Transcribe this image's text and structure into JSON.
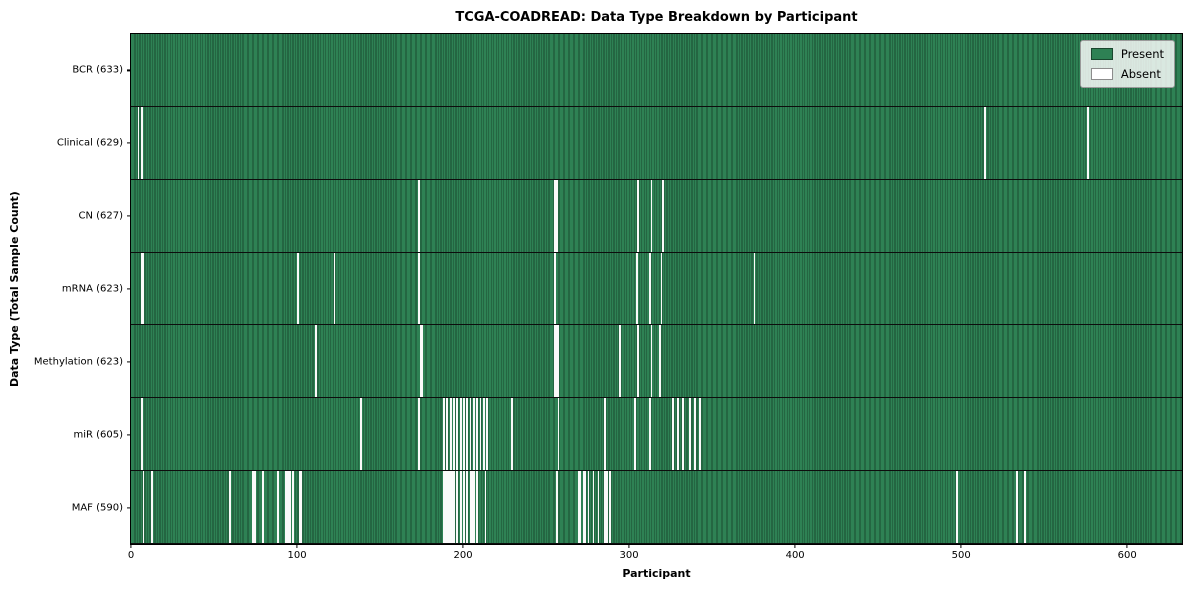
{
  "title": "TCGA-COADREAD: Data Type Breakdown by Participant",
  "legend": {
    "present_label": "Present",
    "absent_label": "Absent"
  },
  "colors": {
    "present": "#2e8154",
    "present_edge": "#1b4c30",
    "absent": "#fafafa",
    "axis": "#000000"
  },
  "chart_data": {
    "type": "heatmap",
    "title": "TCGA-COADREAD: Data Type Breakdown by Participant",
    "xlabel": "Participant",
    "ylabel": "Data Type (Total Sample Count)",
    "legend": [
      "Present",
      "Absent"
    ],
    "legend_position": "upper right",
    "x_ticks": [
      0,
      100,
      200,
      300,
      400,
      500,
      600
    ],
    "x_range": [
      0,
      633
    ],
    "total_participants": 633,
    "rows": [
      {
        "data_type": "BCR",
        "label": "BCR (633)",
        "present_count": 633,
        "absent_participants": []
      },
      {
        "data_type": "Clinical",
        "label": "Clinical (629)",
        "present_count": 629,
        "absent_participants": [
          4,
          6,
          514,
          576
        ]
      },
      {
        "data_type": "CN",
        "label": "CN (627)",
        "present_count": 627,
        "absent_participants": [
          173,
          255,
          256,
          305,
          313,
          320
        ]
      },
      {
        "data_type": "mRNA",
        "label": "mRNA (623)",
        "present_count": 623,
        "absent_participants": [
          6,
          7,
          100,
          122,
          173,
          255,
          304,
          312,
          319,
          375
        ]
      },
      {
        "data_type": "Methylation",
        "label": "Methylation (623)",
        "present_count": 623,
        "absent_participants": [
          111,
          174,
          175,
          255,
          256,
          257,
          294,
          305,
          313,
          318
        ]
      },
      {
        "data_type": "miR",
        "label": "miR (605)",
        "present_count": 605,
        "absent_participants": [
          6,
          138,
          173,
          188,
          190,
          192,
          194,
          196,
          198,
          200,
          202,
          204,
          206,
          208,
          210,
          212,
          214,
          229,
          257,
          285,
          303,
          312,
          326,
          329,
          332,
          336,
          339,
          342
        ]
      },
      {
        "data_type": "MAF",
        "label": "MAF (590)",
        "present_count": 590,
        "absent_participants": [
          7,
          12,
          59,
          73,
          74,
          79,
          88,
          93,
          94,
          95,
          97,
          101,
          102,
          188,
          189,
          190,
          191,
          192,
          193,
          194,
          196,
          198,
          200,
          202,
          204,
          205,
          206,
          208,
          213,
          256,
          269,
          270,
          272,
          273,
          275,
          278,
          281,
          285,
          286,
          288,
          497,
          533,
          538
        ]
      }
    ]
  }
}
